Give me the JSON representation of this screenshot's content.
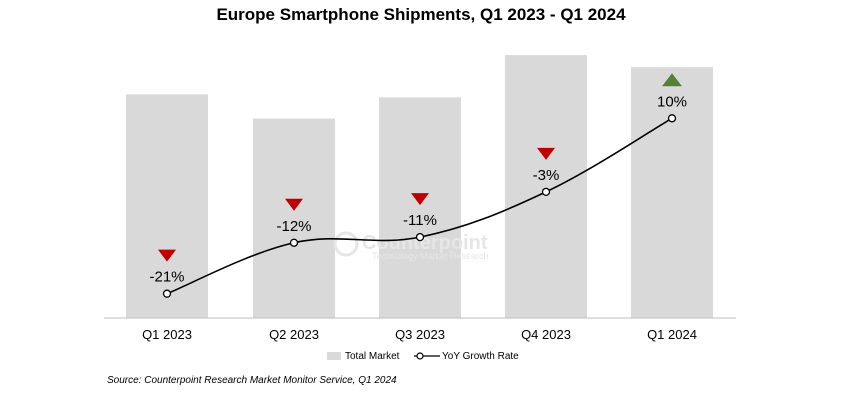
{
  "chart_data": {
    "type": "bar",
    "title": "Europe Smartphone Shipments, Q1 2023 - Q1 2024",
    "categories": [
      "Q1 2023",
      "Q2 2023",
      "Q3 2023",
      "Q4 2023",
      "Q1 2024"
    ],
    "series": [
      {
        "name": "Total Market",
        "type": "bar",
        "values": [
          74,
          66,
          73,
          87,
          83
        ],
        "color": "#d9d9d9"
      },
      {
        "name": "YoY Growth Rate",
        "type": "line",
        "values": [
          -21,
          -12,
          -11,
          -3,
          10
        ],
        "labels": [
          "-21%",
          "-12%",
          "-11%",
          "-3%",
          "10%"
        ],
        "color": "#000000"
      }
    ],
    "bar_axis_range": [
      0,
      90
    ],
    "growth_axis_range": [
      -23,
      15
    ],
    "markers": [
      "down",
      "down",
      "down",
      "down",
      "up"
    ],
    "marker_colors": {
      "down": "#c00000",
      "up": "#548235"
    },
    "legend": {
      "position": "bottom",
      "items": [
        "Total Market",
        "YoY Growth Rate"
      ]
    },
    "source": "Source: Counterpoint Research Market Monitor Service, Q1 2024",
    "watermark": {
      "name": "Counterpoint",
      "tagline": "Technology Market Research"
    }
  }
}
